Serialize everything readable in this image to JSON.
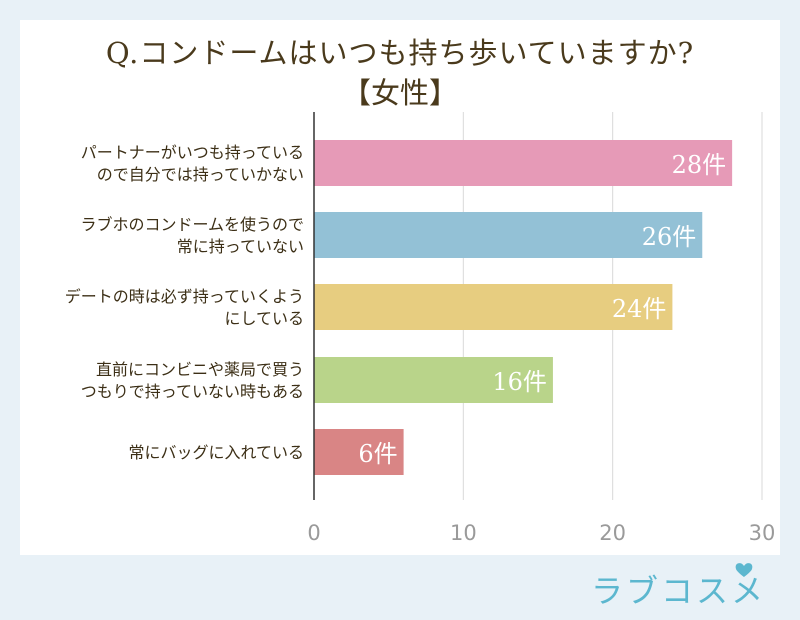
{
  "title_line1": "Q.コンドームはいつも持ち歩いていますか?",
  "title_line2": "【女性】",
  "brand": "ラブコスメ",
  "chart_data": {
    "type": "bar",
    "orientation": "horizontal",
    "categories": [
      [
        "パートナーがいつも持っている",
        "ので自分では持っていかない"
      ],
      [
        "ラブホのコンドームを使うので",
        "常に持っていない"
      ],
      [
        "デートの時は必ず持っていくよう",
        "にしている"
      ],
      [
        "直前にコンビニや薬局で買う",
        "つもりで持っていない時もある"
      ],
      [
        "常にバッグに入れている"
      ]
    ],
    "values": [
      28,
      26,
      24,
      16,
      6
    ],
    "value_labels": [
      "28件",
      "26件",
      "24件",
      "16件",
      "6件"
    ],
    "colors": [
      "#e69ab7",
      "#93c1d6",
      "#e7cd80",
      "#b9d48a",
      "#d98585"
    ],
    "xlim": [
      0,
      30
    ],
    "xticks": [
      0,
      10,
      20,
      30
    ],
    "grid": true
  }
}
